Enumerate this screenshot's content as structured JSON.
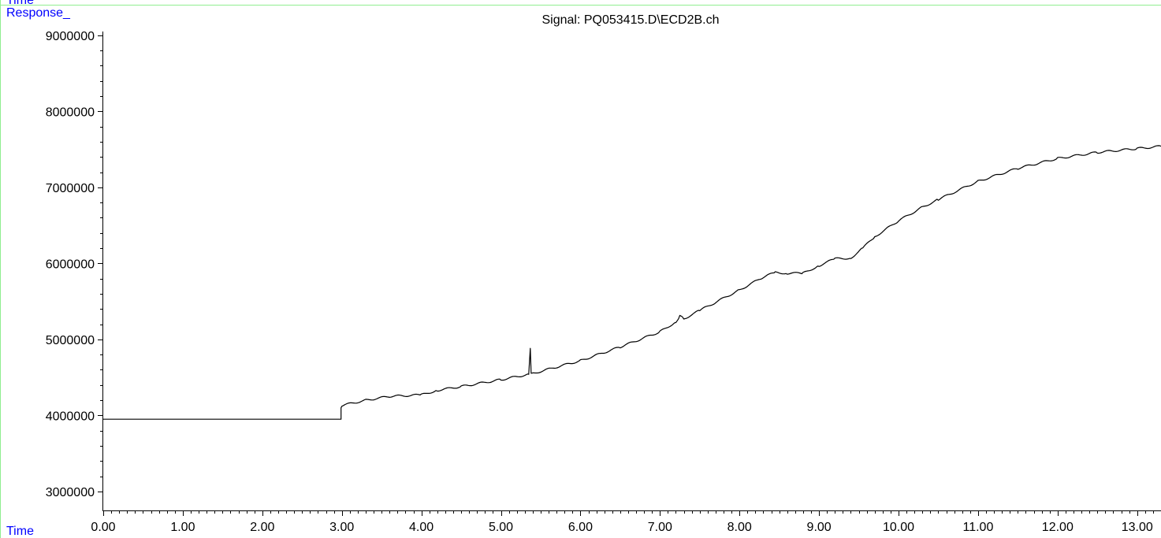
{
  "header_label": "Time",
  "chart_data": {
    "type": "line",
    "title": "Signal: PQ053415.D\\ECD2B.ch",
    "xlabel": "Time",
    "ylabel": "Response_",
    "xlim": [
      0,
      13.3
    ],
    "ylim": [
      2750000,
      9050000
    ],
    "x_ticks": [
      0,
      1,
      2,
      3,
      4,
      5,
      6,
      7,
      8,
      9,
      10,
      11,
      12,
      13
    ],
    "x_tick_labels": [
      "0.00",
      "1.00",
      "2.00",
      "3.00",
      "4.00",
      "5.00",
      "6.00",
      "7.00",
      "8.00",
      "9.00",
      "10.00",
      "11.00",
      "12.00",
      "13.00"
    ],
    "y_ticks": [
      3000000,
      4000000,
      5000000,
      6000000,
      7000000,
      8000000,
      9000000
    ],
    "y_tick_labels": [
      "3000000",
      "4000000",
      "5000000",
      "6000000",
      "7000000",
      "8000000",
      "9000000"
    ],
    "grid": false,
    "line_color": "#000000",
    "label_color": "#0000ff",
    "frame_color": "#90ee90",
    "series": [
      {
        "x": [
          0.0,
          2.99,
          2.99,
          3.0,
          3.3,
          3.6,
          4.0,
          4.2,
          4.5,
          5.0,
          5.35,
          5.37,
          5.38,
          5.4,
          5.5,
          6.0,
          6.5,
          7.0,
          7.2,
          7.25,
          7.3,
          7.5,
          8.0,
          8.3,
          8.45,
          8.6,
          8.8,
          9.0,
          9.2,
          9.4,
          9.55,
          9.7,
          10.0,
          10.3,
          10.5,
          11.0,
          11.5,
          12.0,
          12.5,
          13.0,
          13.3
        ],
        "y": [
          3950000,
          3950000,
          4100000,
          4130000,
          4200000,
          4250000,
          4270000,
          4330000,
          4380000,
          4470000,
          4540000,
          4880000,
          4560000,
          4550000,
          4580000,
          4720000,
          4900000,
          5100000,
          5230000,
          5310000,
          5270000,
          5380000,
          5650000,
          5820000,
          5880000,
          5870000,
          5870000,
          5970000,
          6060000,
          6070000,
          6200000,
          6350000,
          6560000,
          6740000,
          6840000,
          7080000,
          7250000,
          7380000,
          7460000,
          7510000,
          7540000
        ]
      }
    ]
  }
}
